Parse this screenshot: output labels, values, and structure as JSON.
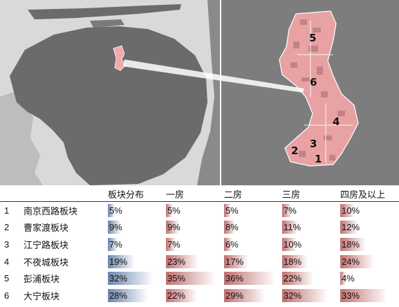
{
  "map": {
    "overview_district_color": "#f4a8ac",
    "land_color": "#6b6b6b",
    "water_color": "#d9d9d9",
    "zoom_bg_color": "#7d7d7d",
    "district_labels": [
      "5",
      "6",
      "4",
      "3",
      "2",
      "1"
    ]
  },
  "table": {
    "headers": [
      "板块分布",
      "一房",
      "二房",
      "三房",
      "四房及以上"
    ],
    "header_color": "#222222",
    "bar_colors": {
      "first_column": "#6d86ad",
      "other_columns": "#c0706f"
    },
    "rows": [
      {
        "idx": "1",
        "name": "南京西路板块",
        "dist": 5,
        "r1": 5,
        "r2": 5,
        "r3": 7,
        "r4": 10
      },
      {
        "idx": "2",
        "name": "曹家渡板块",
        "dist": 9,
        "r1": 9,
        "r2": 8,
        "r3": 11,
        "r4": 12
      },
      {
        "idx": "3",
        "name": "江宁路板块",
        "dist": 7,
        "r1": 7,
        "r2": 6,
        "r3": 10,
        "r4": 18
      },
      {
        "idx": "4",
        "name": "不夜城板块",
        "dist": 19,
        "r1": 23,
        "r2": 17,
        "r3": 18,
        "r4": 24
      },
      {
        "idx": "5",
        "name": "彭浦板块",
        "dist": 32,
        "r1": 35,
        "r2": 36,
        "r3": 22,
        "r4": 4
      },
      {
        "idx": "6",
        "name": "大宁板块",
        "dist": 28,
        "r1": 22,
        "r2": 29,
        "r3": 32,
        "r4": 33
      }
    ]
  }
}
